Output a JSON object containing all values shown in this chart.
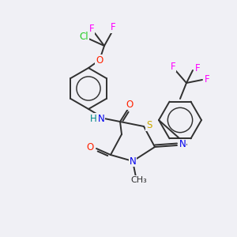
{
  "background_color": "#f0f0f5",
  "bond_color": "#303030",
  "bond_width": 1.4,
  "font_size": 8.5,
  "colors": {
    "Cl": "#22cc22",
    "F": "#ff00ff",
    "O": "#ff2200",
    "N": "#0000ee",
    "S": "#ccaa00",
    "H": "#008888",
    "C": "#303030"
  }
}
